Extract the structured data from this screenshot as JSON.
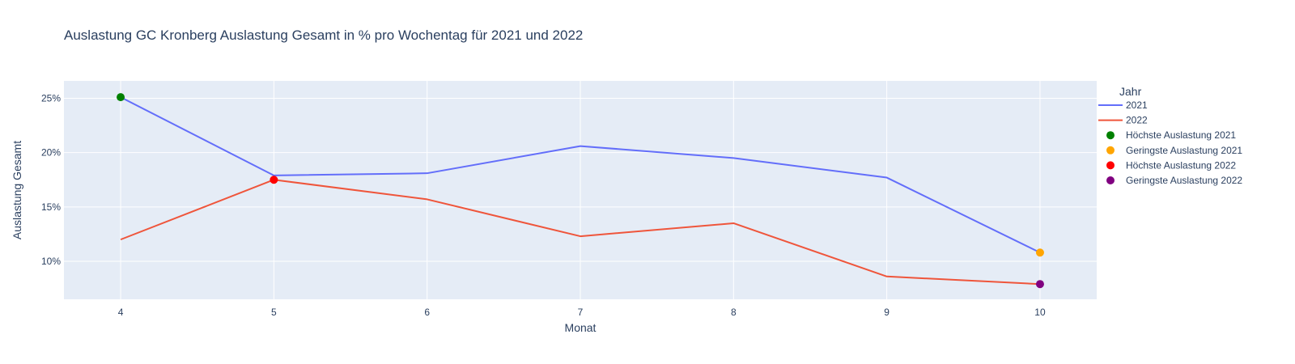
{
  "chart_data": {
    "type": "line",
    "title": "Auslastung GC Kronberg Auslastung Gesamt in % pro Wochentag für 2021 und 2022",
    "xlabel": "Monat",
    "ylabel": "Auslastung Gesamt",
    "xlim": [
      3.63,
      10.37
    ],
    "ylim": [
      6.5,
      26.6
    ],
    "x_ticks": [
      4,
      5,
      6,
      7,
      8,
      9,
      10
    ],
    "y_ticks": [
      10,
      15,
      20,
      25
    ],
    "y_tick_suffix": "%",
    "grid": true,
    "legend_title": "Jahr",
    "legend_position": "right",
    "series": [
      {
        "name": "2021",
        "kind": "line",
        "color": "#636efa",
        "x": [
          4,
          5,
          6,
          7,
          8,
          9,
          10
        ],
        "y": [
          25.1,
          17.9,
          18.1,
          20.6,
          19.5,
          17.7,
          10.8
        ]
      },
      {
        "name": "2022",
        "kind": "line",
        "color": "#ef553b",
        "x": [
          4,
          5,
          6,
          7,
          8,
          9,
          10
        ],
        "y": [
          12.0,
          17.5,
          15.7,
          12.3,
          13.5,
          8.6,
          7.9
        ]
      },
      {
        "name": "Höchste Auslastung 2021",
        "kind": "marker",
        "color": "#008000",
        "x": [
          4
        ],
        "y": [
          25.1
        ]
      },
      {
        "name": "Geringste Auslastung 2021",
        "kind": "marker",
        "color": "#ffa500",
        "x": [
          10
        ],
        "y": [
          10.8
        ]
      },
      {
        "name": "Höchste Auslastung 2022",
        "kind": "marker",
        "color": "#ff0000",
        "x": [
          5
        ],
        "y": [
          17.5
        ]
      },
      {
        "name": "Geringste Auslastung 2022",
        "kind": "marker",
        "color": "#800080",
        "x": [
          10
        ],
        "y": [
          7.9
        ]
      }
    ]
  }
}
